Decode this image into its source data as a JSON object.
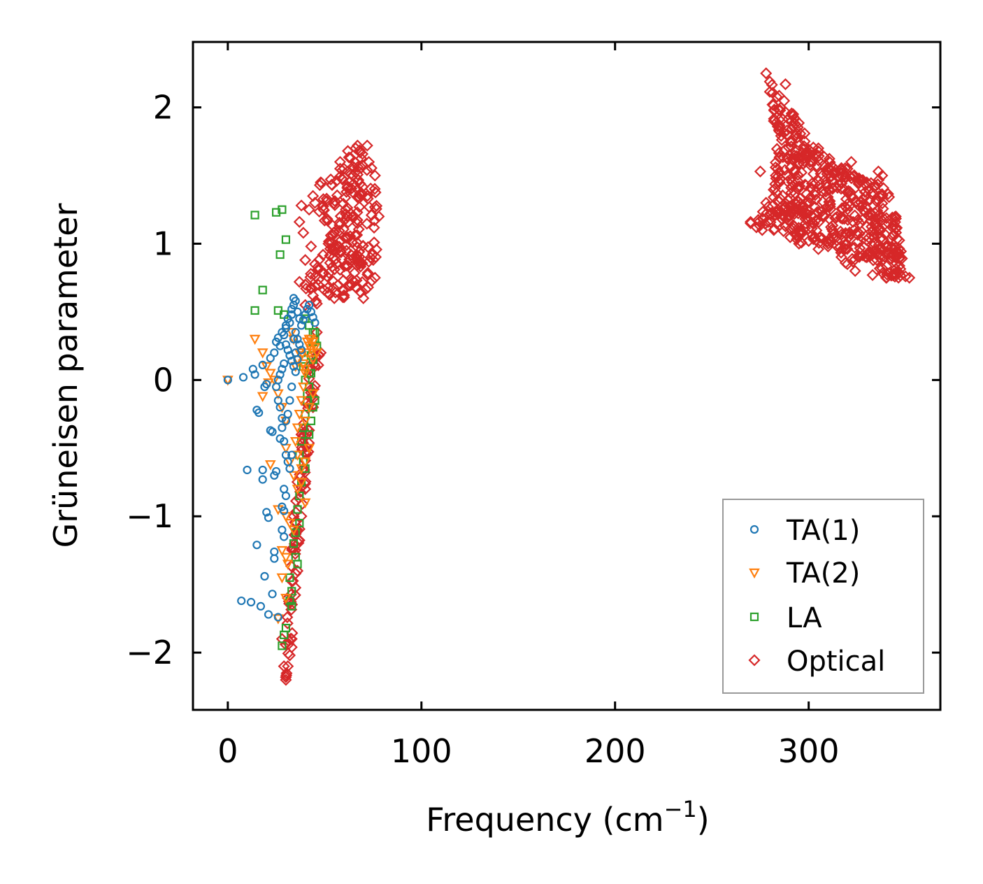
{
  "chart_data": {
    "type": "scatter",
    "title": "",
    "xlabel": "Frequency (cm",
    "xlabel_sup": "−1",
    "xlabel_close": ")",
    "ylabel": "Grüneisen parameter",
    "xlim": [
      -18,
      368
    ],
    "ylim": [
      -2.42,
      2.48
    ],
    "xticks": [
      0,
      100,
      200,
      300
    ],
    "xtick_labels": [
      "0",
      "100",
      "200",
      "300"
    ],
    "yticks": [
      -2,
      -1,
      0,
      1,
      2
    ],
    "ytick_labels": [
      "−2",
      "−1",
      "0",
      "1",
      "2"
    ],
    "legend_position": "lower-right",
    "series": [
      {
        "name": "TA(1)",
        "marker": "circle",
        "color": "#1f77b4",
        "points": [
          [
            0,
            0
          ],
          [
            8,
            0.02
          ],
          [
            13,
            0.08
          ],
          [
            14,
            0.04
          ],
          [
            18,
            0.11
          ],
          [
            19,
            -0.05
          ],
          [
            20,
            -0.03
          ],
          [
            15,
            -0.22
          ],
          [
            16,
            -0.24
          ],
          [
            22,
            -0.37
          ],
          [
            23,
            -0.38
          ],
          [
            27,
            -0.43
          ],
          [
            28,
            -0.28
          ],
          [
            10,
            -0.66
          ],
          [
            18,
            -0.66
          ],
          [
            18,
            -0.73
          ],
          [
            24,
            -0.7
          ],
          [
            25,
            -0.67
          ],
          [
            20,
            -0.97
          ],
          [
            21,
            -1.01
          ],
          [
            28,
            -0.93
          ],
          [
            29,
            -0.96
          ],
          [
            15,
            -1.21
          ],
          [
            24,
            -1.26
          ],
          [
            24,
            -1.31
          ],
          [
            19,
            -1.44
          ],
          [
            23,
            -1.57
          ],
          [
            7,
            -1.62
          ],
          [
            12,
            -1.63
          ],
          [
            17,
            -1.66
          ],
          [
            21,
            -1.72
          ],
          [
            26,
            -1.74
          ],
          [
            22,
            0.16
          ],
          [
            24,
            0.2
          ],
          [
            25,
            0.28
          ],
          [
            26,
            0.31
          ],
          [
            27,
            0.25
          ],
          [
            28,
            0.35
          ],
          [
            29,
            0.33
          ],
          [
            30,
            0.38
          ],
          [
            30,
            0.4
          ],
          [
            31,
            0.45
          ],
          [
            32,
            0.42
          ],
          [
            33,
            0.48
          ],
          [
            33,
            0.52
          ],
          [
            34,
            0.55
          ],
          [
            34,
            0.6
          ],
          [
            35,
            0.58
          ],
          [
            36,
            0.5
          ],
          [
            37,
            0.45
          ],
          [
            38,
            0.4
          ],
          [
            39,
            0.44
          ],
          [
            40,
            0.48
          ],
          [
            41,
            0.52
          ],
          [
            42,
            0.55
          ],
          [
            43,
            0.5
          ],
          [
            44,
            0.46
          ],
          [
            45,
            0.42
          ],
          [
            30,
            0.26
          ],
          [
            31,
            0.22
          ],
          [
            32,
            0.18
          ],
          [
            33,
            0.14
          ],
          [
            34,
            0.1
          ],
          [
            35,
            0.06
          ],
          [
            29,
            0.12
          ],
          [
            28,
            0.08
          ],
          [
            27,
            0.04
          ],
          [
            26,
            0.0
          ],
          [
            25,
            -0.05
          ],
          [
            26,
            -0.15
          ],
          [
            27,
            -0.2
          ],
          [
            28,
            -0.35
          ],
          [
            29,
            -0.45
          ],
          [
            30,
            -0.55
          ],
          [
            31,
            -0.6
          ],
          [
            32,
            -0.65
          ],
          [
            33,
            -0.55
          ],
          [
            29,
            -0.8
          ],
          [
            30,
            -0.85
          ],
          [
            28,
            -1.1
          ],
          [
            29,
            -1.15
          ],
          [
            30,
            -0.3
          ],
          [
            31,
            -0.25
          ],
          [
            32,
            -0.15
          ],
          [
            33,
            -0.05
          ],
          [
            34,
            0.3
          ],
          [
            35,
            0.35
          ],
          [
            36,
            0.3
          ],
          [
            37,
            0.26
          ],
          [
            38,
            0.22
          ],
          [
            36,
            0.15
          ],
          [
            35,
            0.2
          ]
        ]
      },
      {
        "name": "TA(2)",
        "marker": "triangle-down",
        "color": "#ff7f0e",
        "points": [
          [
            0,
            0
          ],
          [
            14,
            0.3
          ],
          [
            18,
            0.2
          ],
          [
            20,
            0.1
          ],
          [
            22,
            0.05
          ],
          [
            24,
            0.0
          ],
          [
            21,
            -0.02
          ],
          [
            18,
            -0.12
          ],
          [
            26,
            -0.1
          ],
          [
            28,
            -0.2
          ],
          [
            30,
            -0.3
          ],
          [
            22,
            -0.62
          ],
          [
            30,
            -0.5
          ],
          [
            32,
            -0.6
          ],
          [
            34,
            -0.7
          ],
          [
            36,
            -0.8
          ],
          [
            38,
            -0.75
          ],
          [
            40,
            -0.9
          ],
          [
            26,
            -0.95
          ],
          [
            30,
            -1.0
          ],
          [
            32,
            -1.05
          ],
          [
            34,
            -1.1
          ],
          [
            28,
            -1.25
          ],
          [
            30,
            -1.3
          ],
          [
            31,
            -1.35
          ],
          [
            28,
            -1.45
          ],
          [
            30,
            -1.6
          ],
          [
            26,
            -1.75
          ],
          [
            35,
            0.1
          ],
          [
            36,
            0.15
          ],
          [
            37,
            0.2
          ],
          [
            38,
            0.18
          ],
          [
            39,
            0.12
          ],
          [
            40,
            0.08
          ],
          [
            41,
            0.2
          ],
          [
            42,
            0.25
          ],
          [
            43,
            0.22
          ],
          [
            44,
            0.15
          ],
          [
            40,
            0.05
          ],
          [
            39,
            -0.05
          ],
          [
            38,
            -0.15
          ],
          [
            37,
            -0.25
          ],
          [
            36,
            -0.35
          ],
          [
            35,
            -0.45
          ],
          [
            36,
            -0.55
          ],
          [
            38,
            -0.65
          ],
          [
            40,
            -0.6
          ],
          [
            42,
            -0.5
          ],
          [
            41,
            0.28
          ],
          [
            42,
            0.3
          ],
          [
            43,
            0.3
          ],
          [
            44,
            0.28
          ],
          [
            45,
            0.24
          ],
          [
            46,
            0.2
          ],
          [
            34,
            0.3
          ],
          [
            33,
            0.35
          ],
          [
            40,
            -0.3
          ],
          [
            42,
            -0.2
          ],
          [
            44,
            -0.1
          ]
        ]
      },
      {
        "name": "LA",
        "marker": "square",
        "color": "#2ca02c",
        "points": [
          [
            14,
            1.21
          ],
          [
            25,
            1.23
          ],
          [
            28,
            1.25
          ],
          [
            30,
            1.03
          ],
          [
            27,
            0.92
          ],
          [
            18,
            0.66
          ],
          [
            14,
            0.51
          ],
          [
            26,
            0.51
          ],
          [
            29,
            0.48
          ],
          [
            40,
            0.45
          ],
          [
            42,
            0.4
          ],
          [
            44,
            0.35
          ],
          [
            45,
            0.3
          ],
          [
            46,
            0.25
          ],
          [
            44,
            0.15
          ],
          [
            43,
            0.05
          ],
          [
            42,
            -0.05
          ],
          [
            41,
            -0.15
          ],
          [
            40,
            -0.25
          ],
          [
            39,
            -0.35
          ],
          [
            42,
            -0.4
          ],
          [
            43,
            -0.3
          ],
          [
            44,
            -0.2
          ],
          [
            45,
            -0.15
          ],
          [
            38,
            -0.45
          ],
          [
            37,
            -0.55
          ],
          [
            39,
            -0.6
          ],
          [
            40,
            -0.65
          ],
          [
            38,
            -0.75
          ],
          [
            37,
            -0.85
          ],
          [
            36,
            -0.95
          ],
          [
            37,
            -1.05
          ],
          [
            35,
            -1.12
          ],
          [
            34,
            -1.2
          ],
          [
            35,
            -1.3
          ],
          [
            36,
            -1.35
          ],
          [
            32,
            -1.45
          ],
          [
            33,
            -1.55
          ],
          [
            32,
            -1.62
          ],
          [
            33,
            -1.66
          ],
          [
            30,
            -1.82
          ],
          [
            29,
            -1.87
          ],
          [
            28,
            -1.95
          ],
          [
            38,
            0.2
          ],
          [
            39,
            0.1
          ],
          [
            40,
            0.0
          ],
          [
            41,
            -0.1
          ],
          [
            42,
            0.05
          ],
          [
            43,
            0.18
          ],
          [
            44,
            0.28
          ],
          [
            45,
            0.35
          ]
        ]
      },
      {
        "name": "Optical",
        "marker": "diamond",
        "color": "#d62728",
        "points": []
      }
    ],
    "optical_clusters": [
      {
        "poly": [
          [
            30,
            -2.2
          ],
          [
            33,
            -1.9
          ],
          [
            36,
            -1.4
          ],
          [
            40,
            -0.8
          ],
          [
            44,
            -0.2
          ],
          [
            48,
            0.2
          ],
          [
            46,
            0.35
          ],
          [
            42,
            0.1
          ],
          [
            38,
            -0.4
          ],
          [
            34,
            -1.0
          ],
          [
            31,
            -1.6
          ],
          [
            29,
            -2.1
          ]
        ],
        "count": 90,
        "seed": 11
      },
      {
        "poly": [
          [
            40,
            0.55
          ],
          [
            55,
            0.6
          ],
          [
            70,
            0.6
          ],
          [
            76,
            0.75
          ],
          [
            78,
            1.2
          ],
          [
            76,
            1.5
          ],
          [
            72,
            1.72
          ],
          [
            66,
            1.7
          ],
          [
            58,
            1.55
          ],
          [
            48,
            1.45
          ],
          [
            44,
            1.35
          ],
          [
            52,
            1.0
          ],
          [
            45,
            0.85
          ],
          [
            40,
            0.7
          ]
        ],
        "count": 210,
        "seed": 23
      },
      {
        "poly": [
          [
            278,
            2.25
          ],
          [
            292,
            1.95
          ],
          [
            305,
            1.7
          ],
          [
            320,
            1.55
          ],
          [
            330,
            1.45
          ],
          [
            338,
            1.5
          ],
          [
            345,
            1.2
          ],
          [
            352,
            0.75
          ],
          [
            340,
            0.75
          ],
          [
            330,
            0.9
          ],
          [
            320,
            0.85
          ],
          [
            310,
            1.0
          ],
          [
            295,
            1.0
          ],
          [
            282,
            1.1
          ],
          [
            270,
            1.15
          ],
          [
            278,
            1.3
          ],
          [
            283,
            1.5
          ],
          [
            282,
            1.9
          ]
        ],
        "count": 520,
        "seed": 37
      }
    ],
    "optical_outliers": [
      [
        30,
        -2.18
      ],
      [
        31,
        -2.1
      ],
      [
        32,
        -2.02
      ],
      [
        33,
        -1.96
      ],
      [
        28,
        -1.9
      ],
      [
        45,
        0.1
      ],
      [
        47,
        0.18
      ],
      [
        38,
        1.28
      ],
      [
        42,
        1.25
      ],
      [
        45,
        1.3
      ],
      [
        37,
        1.16
      ],
      [
        39,
        1.08
      ],
      [
        43,
        0.98
      ],
      [
        40,
        0.88
      ],
      [
        43,
        0.68
      ],
      [
        37,
        0.72
      ],
      [
        46,
        0.56
      ],
      [
        44,
        0.62
      ],
      [
        50,
        1.17
      ],
      [
        55,
        0.95
      ],
      [
        58,
        1.6
      ],
      [
        62,
        1.68
      ],
      [
        67,
        1.72
      ],
      [
        270,
        1.16
      ],
      [
        273,
        1.12
      ],
      [
        276,
        1.1
      ],
      [
        275,
        1.53
      ],
      [
        279,
        1.27
      ],
      [
        285,
        1.45
      ],
      [
        284,
        1.86
      ],
      [
        288,
        2.17
      ],
      [
        293,
        1.88
      ],
      [
        298,
        1.6
      ],
      [
        300,
        1.02
      ],
      [
        305,
        0.96
      ],
      [
        310,
        0.98
      ],
      [
        319,
        0.86
      ],
      [
        324,
        0.8
      ],
      [
        322,
        1.6
      ],
      [
        326,
        1.48
      ],
      [
        333,
        0.77
      ],
      [
        338,
        0.82
      ],
      [
        344,
        0.78
      ],
      [
        350,
        0.76
      ],
      [
        336,
        1.53
      ]
    ]
  }
}
